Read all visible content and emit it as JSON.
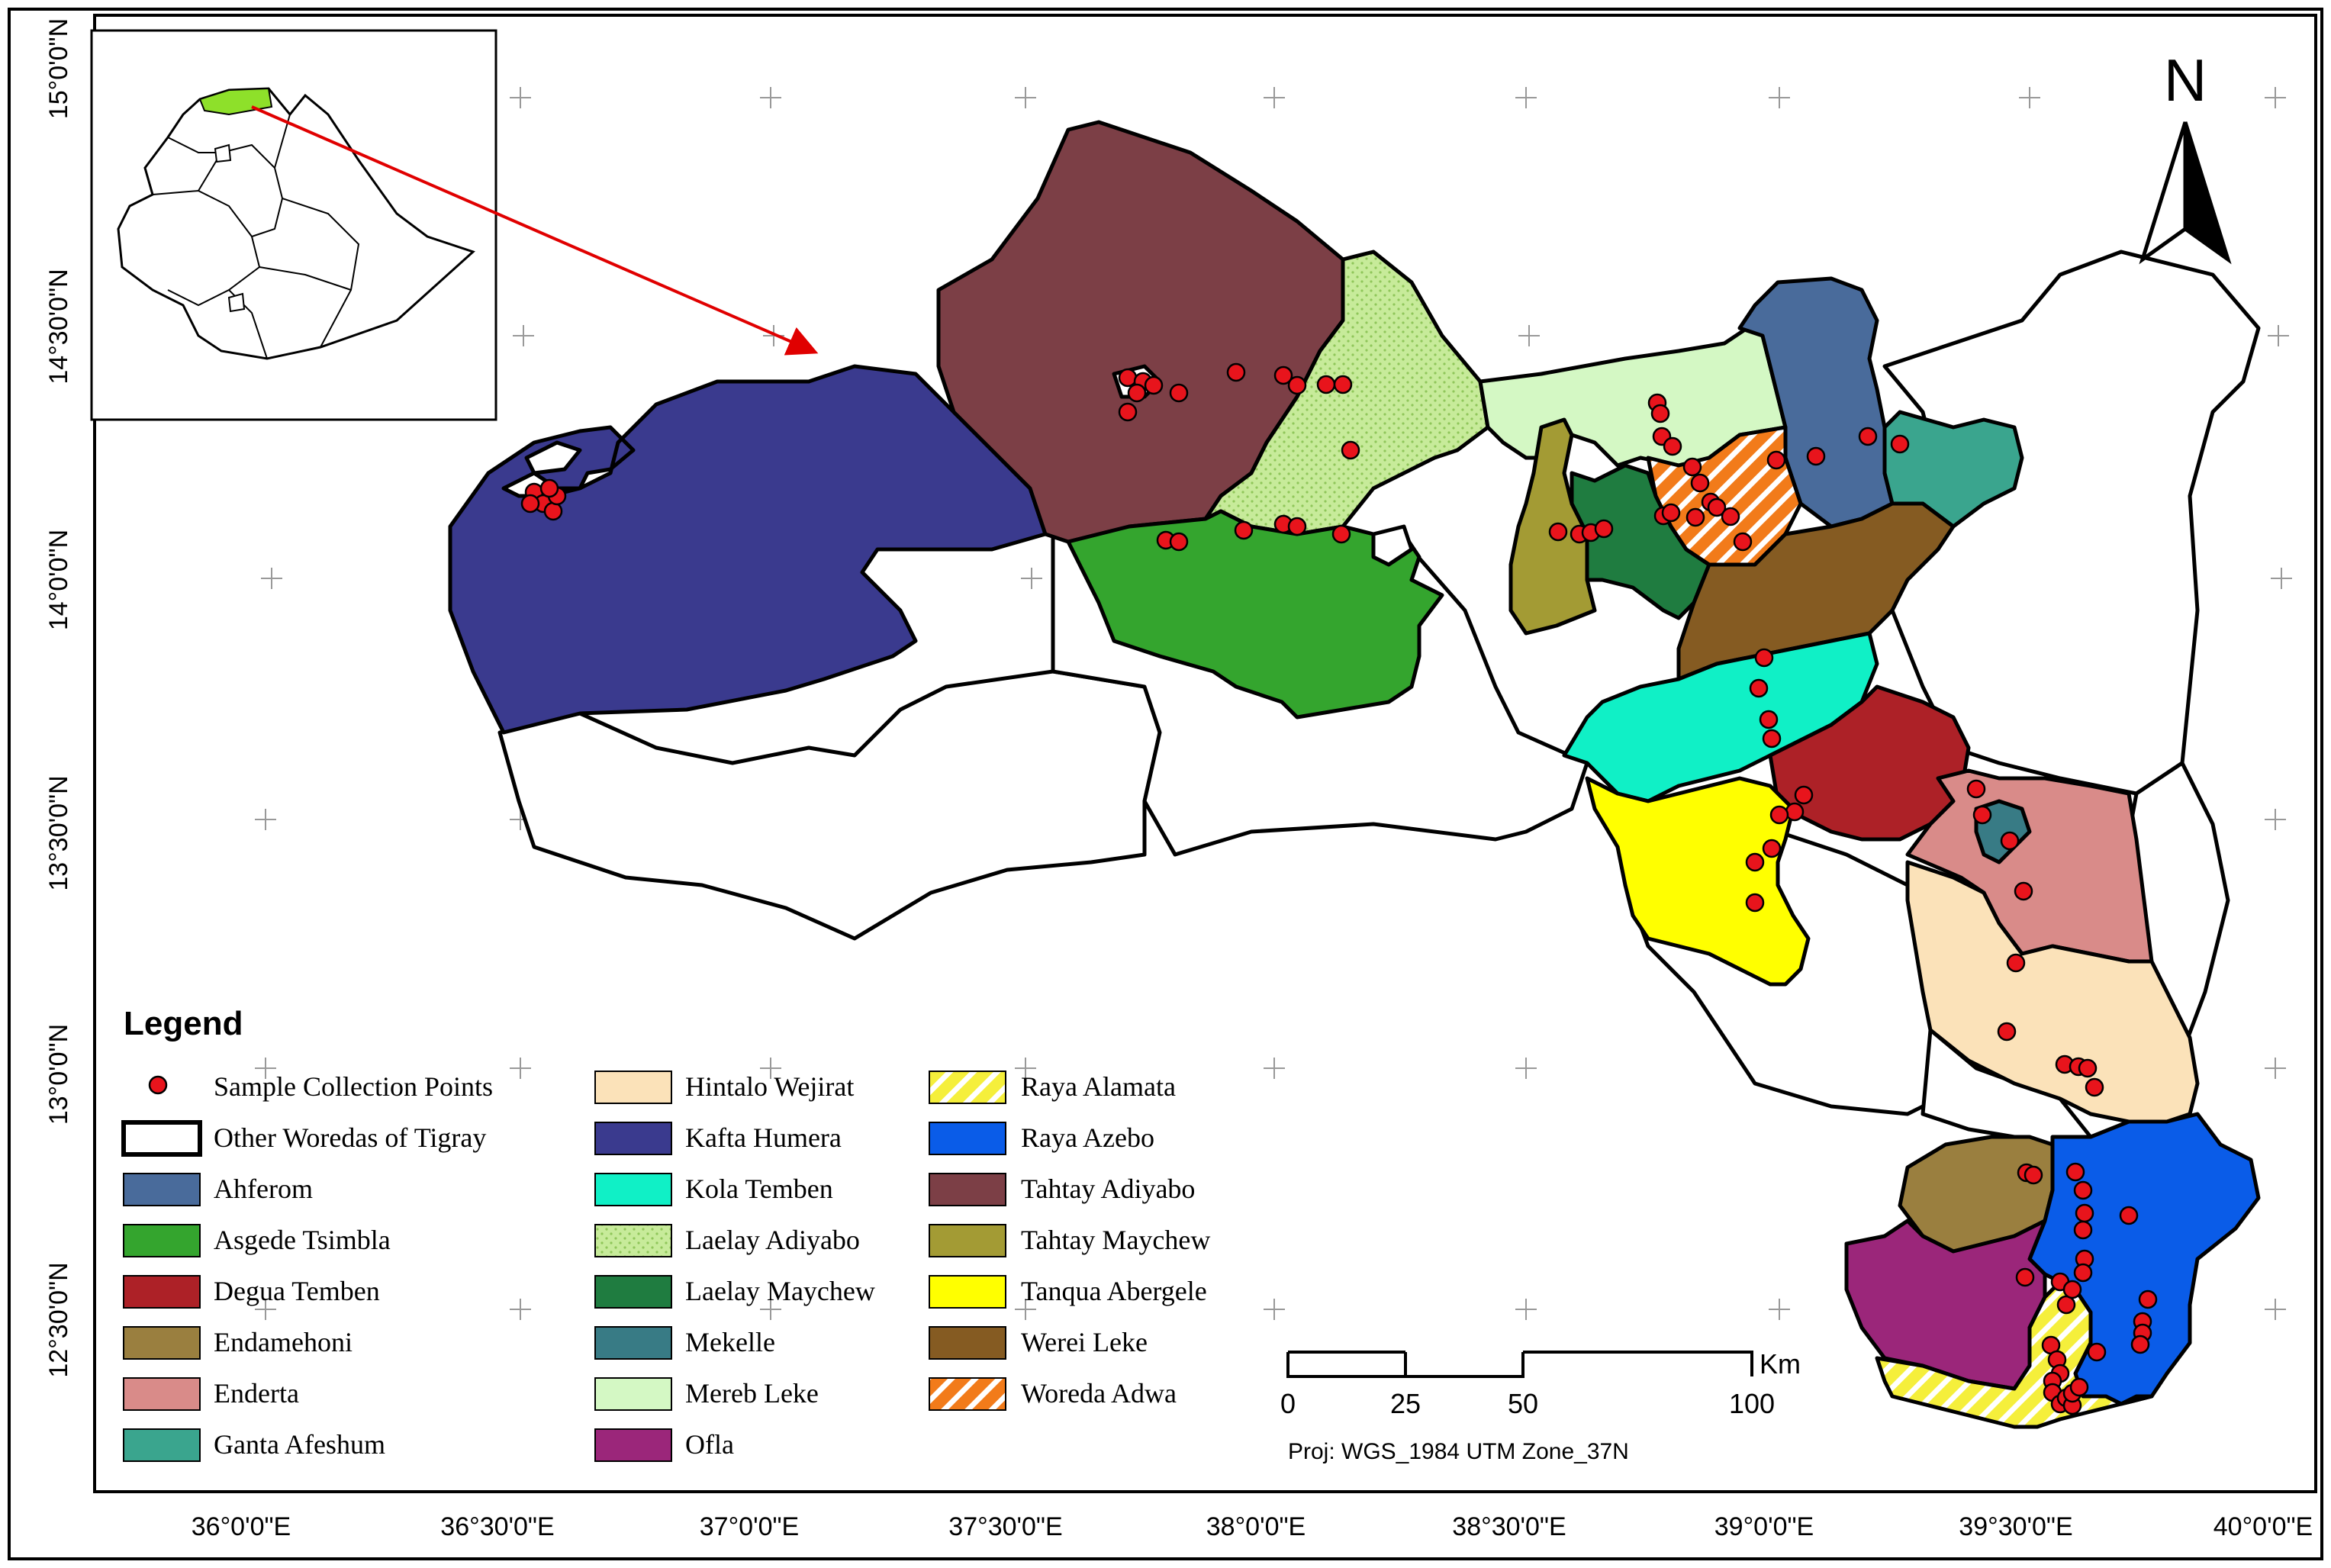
{
  "latitude_labels": [
    "15°0'0\"N",
    "14°30'0\"N",
    "14°0'0\"N",
    "13°30'0\"N",
    "13°0'0\"N",
    "12°30'0\"N"
  ],
  "longitude_labels": [
    "36°0'0\"E",
    "36°30'0\"E",
    "37°0'0\"E",
    "37°30'0\"E",
    "38°0'0\"E",
    "38°30'0\"E",
    "39°0'0\"E",
    "39°30'0\"E",
    "40°0'0\"E"
  ],
  "north_arrow_label": "N",
  "legend": {
    "title": "Legend",
    "items": [
      {
        "label": "Sample Collection Points",
        "kind": "point",
        "color": "#e8141c"
      },
      {
        "label": "Other Woredas of Tigray",
        "kind": "outline",
        "color": "#ffffff"
      },
      {
        "label": "Ahferom",
        "kind": "fill",
        "color": "#496b9b"
      },
      {
        "label": "Asgede Tsimbla",
        "kind": "fill",
        "color": "#34a52e"
      },
      {
        "label": "Degua Temben",
        "kind": "fill",
        "color": "#ad2127"
      },
      {
        "label": "Endamehoni",
        "kind": "fill",
        "color": "#9a7f3f"
      },
      {
        "label": "Enderta",
        "kind": "fill",
        "color": "#d98b89"
      },
      {
        "label": "Ganta Afeshum",
        "kind": "fill",
        "color": "#3aa58e"
      },
      {
        "label": "Hintalo Wejirat",
        "kind": "fill",
        "color": "#fbe2b9"
      },
      {
        "label": "Kafta Humera",
        "kind": "fill",
        "color": "#3a3a8e"
      },
      {
        "label": "Kola Temben",
        "kind": "fill",
        "color": "#10f0c6"
      },
      {
        "label": "Laelay Adiyabo",
        "kind": "dots",
        "color": "#c7eb9a"
      },
      {
        "label": "Laelay Maychew",
        "kind": "fill",
        "color": "#1f7c40"
      },
      {
        "label": "Mekelle",
        "kind": "fill",
        "color": "#387b85"
      },
      {
        "label": "Mereb Leke",
        "kind": "fill",
        "color": "#d4f8c4"
      },
      {
        "label": "Ofla",
        "kind": "fill",
        "color": "#9b267a"
      },
      {
        "label": "Raya  Alamata",
        "kind": "hatch-yellow",
        "color": "#f5ef3b"
      },
      {
        "label": "Raya Azebo",
        "kind": "fill",
        "color": "#0a5ce8"
      },
      {
        "label": "Tahtay Adiyabo",
        "kind": "fill",
        "color": "#7c3f46"
      },
      {
        "label": "Tahtay Maychew",
        "kind": "fill",
        "color": "#a39b34"
      },
      {
        "label": "Tanqua Abergele",
        "kind": "fill",
        "color": "#ffff00"
      },
      {
        "label": "Werei Leke",
        "kind": "fill",
        "color": "#855b22"
      },
      {
        "label": "Woreda Adwa",
        "kind": "hatch-orange",
        "color": "#f27b1a"
      }
    ]
  },
  "scale_bar": {
    "ticks": [
      "0",
      "25",
      "50",
      "100"
    ],
    "unit": "Km",
    "projection": "Proj: WGS_1984 UTM Zone_37N"
  }
}
